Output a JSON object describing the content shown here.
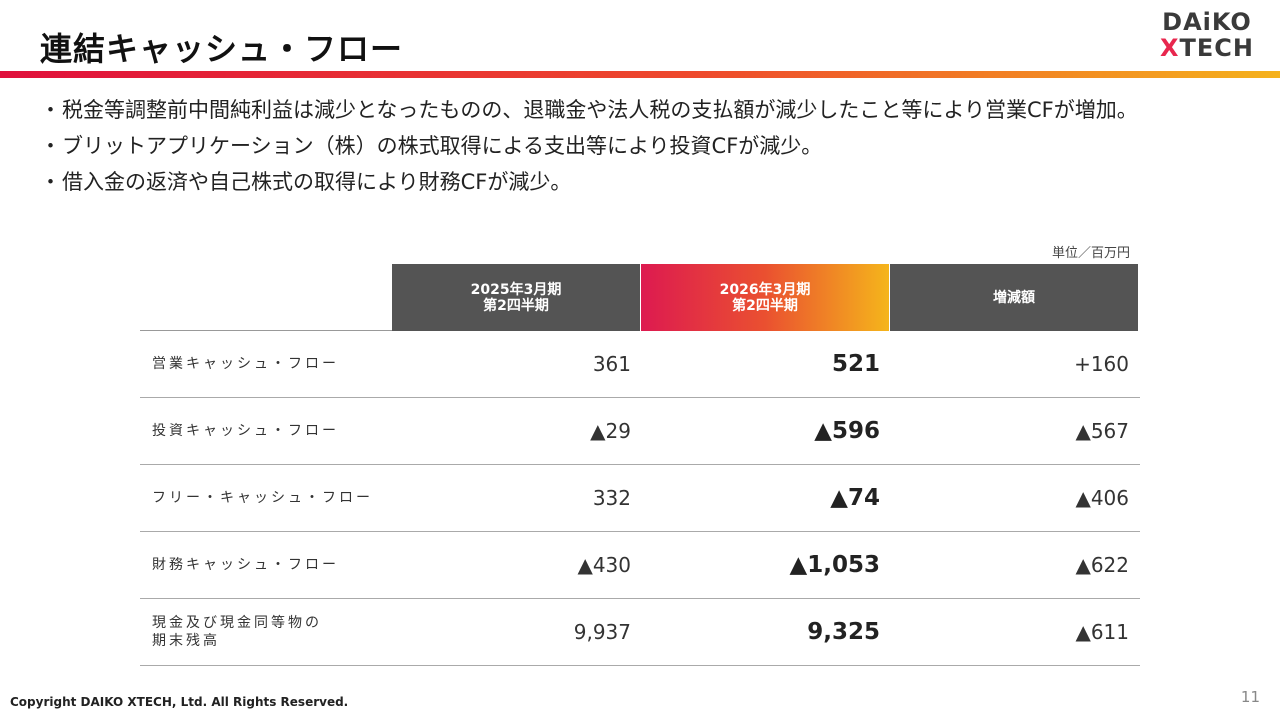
{
  "title": "連結キャッシュ・フロー",
  "logo": {
    "line1": "DAiKO",
    "line2_x": "X",
    "line2_rest": "TECH"
  },
  "bullets": [
    "税金等調整前中間純利益は減少となったものの、退職金や法人税の支払額が減少したこと等により営業CFが増加。",
    "ブリットアプリケーション（株）の株式取得による支出等により投資CFが減少。",
    "借入金の返済や自己株式の取得により財務CFが減少。"
  ],
  "bullet_marker": "・",
  "unit": "単位／百万円",
  "table": {
    "headers": [
      {
        "line1": "2025年3月期",
        "line2": "第2四半期"
      },
      {
        "line1": "2026年3月期",
        "line2": "第2四半期"
      },
      {
        "line1": "増減額",
        "line2": ""
      }
    ],
    "rows": [
      {
        "label": "営業キャッシュ・フロー",
        "label2": "",
        "prev": "361",
        "curr": "521",
        "diff": "+160"
      },
      {
        "label": "投資キャッシュ・フロー",
        "label2": "",
        "prev": "▲29",
        "curr": "▲596",
        "diff": "▲567"
      },
      {
        "label": "フリー・キャッシュ・フロー",
        "label2": "",
        "prev": "332",
        "curr": "▲74",
        "diff": "▲406"
      },
      {
        "label": "財務キャッシュ・フロー",
        "label2": "",
        "prev": "▲430",
        "curr": "▲1,053",
        "diff": "▲622"
      },
      {
        "label": "現金及び現金同等物の",
        "label2": "期末残高",
        "prev": "9,937",
        "curr": "9,325",
        "diff": "▲611"
      }
    ]
  },
  "footer": "Copyright DAIKO XTECH, Ltd. All Rights Reserved.",
  "page_number": "11",
  "colors": {
    "accent_red": "#e0103c",
    "accent_orange": "#ee4a2c",
    "accent_yellow": "#f5b21c",
    "header_gray": "#545454"
  }
}
